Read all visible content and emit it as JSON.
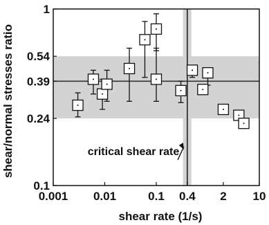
{
  "chart_data": {
    "type": "scatter",
    "xlabel": "shear rate (1/s)",
    "ylabel": "shear/normal stresses ratio",
    "x_scale": "log",
    "y_scale": "log",
    "xlim": [
      0.001,
      10
    ],
    "ylim": [
      0.1,
      1
    ],
    "x_ticks": [
      {
        "value": 0.001,
        "label": "0.001"
      },
      {
        "value": 0.01,
        "label": "0.01"
      },
      {
        "value": 0.1,
        "label": "0.1"
      },
      {
        "value": 0.4,
        "label": "0.4"
      },
      {
        "value": 2,
        "label": "2"
      },
      {
        "value": 10,
        "label": "10"
      }
    ],
    "y_ticks": [
      {
        "value": 0.1,
        "label": "0.1"
      },
      {
        "value": 0.24,
        "label": "0.24"
      },
      {
        "value": 0.39,
        "label": "0.39"
      },
      {
        "value": 0.54,
        "label": "0.54"
      },
      {
        "value": 1,
        "label": "1"
      }
    ],
    "reference_lines": {
      "horizontal": 0.39,
      "vertical": 0.4
    },
    "bands": {
      "horizontal": {
        "from": 0.24,
        "to": 0.54
      },
      "vertical": {
        "from": 0.33,
        "to": 0.48
      }
    },
    "points": [
      {
        "x": 0.003,
        "y": 0.285,
        "low": 0.245,
        "high": 0.335
      },
      {
        "x": 0.006,
        "y": 0.4,
        "low": 0.33,
        "high": 0.45
      },
      {
        "x": 0.009,
        "y": 0.33,
        "low": 0.27,
        "high": 0.4
      },
      {
        "x": 0.011,
        "y": 0.375,
        "low": 0.3,
        "high": 0.45
      },
      {
        "x": 0.03,
        "y": 0.46,
        "low": 0.3,
        "high": 0.6
      },
      {
        "x": 0.06,
        "y": 0.67,
        "low": 0.41,
        "high": 0.85
      },
      {
        "x": 0.1,
        "y": 0.4,
        "low": 0.3,
        "high": 0.6
      },
      {
        "x": 0.1,
        "y": 0.77,
        "low": 0.58,
        "high": 0.94
      },
      {
        "x": 0.3,
        "y": 0.345,
        "low": 0.295,
        "high": 0.39
      },
      {
        "x": 0.5,
        "y": 0.45,
        "low": 0.41,
        "high": 0.47
      },
      {
        "x": 0.8,
        "y": 0.35,
        "low": 0.33,
        "high": 0.37
      },
      {
        "x": 1.0,
        "y": 0.435,
        "low": 0.37,
        "high": 0.46
      },
      {
        "x": 2.0,
        "y": 0.27,
        "low": 0.27,
        "high": 0.27
      },
      {
        "x": 4.0,
        "y": 0.25,
        "low": 0.25,
        "high": 0.25
      },
      {
        "x": 5.0,
        "y": 0.225,
        "low": 0.225,
        "high": 0.225
      }
    ],
    "annotation": "critical shear rate",
    "annotation_target": {
      "x": 0.4,
      "y": 0.16
    }
  },
  "colors": {
    "band": "#d3d3d3",
    "line": "#333333",
    "marker_fill": "#ffffff",
    "marker_edge": "#111111"
  }
}
